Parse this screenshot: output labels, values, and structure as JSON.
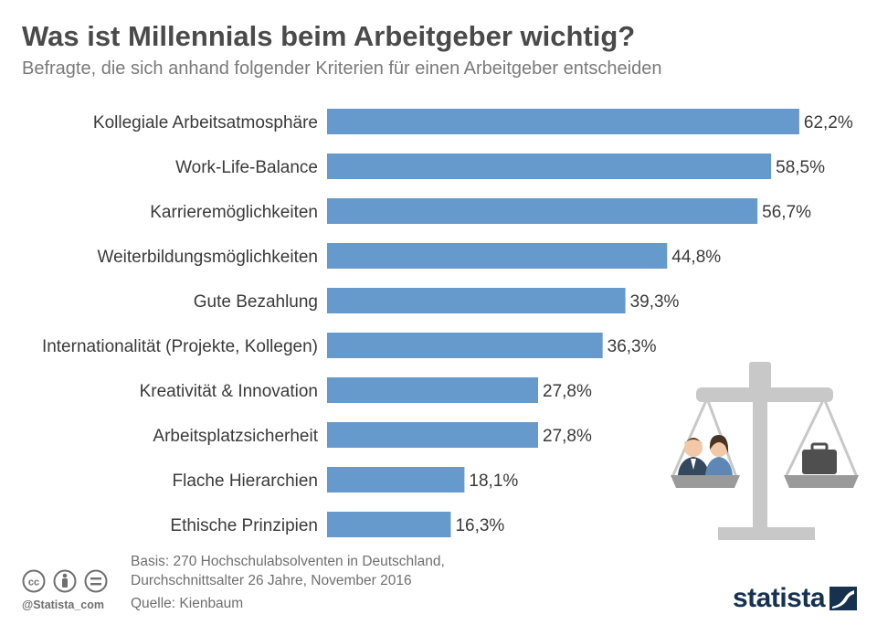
{
  "header": {
    "title": "Was ist Millennials beim Arbeitgeber wichtig?",
    "subtitle": "Befragte, die sich anhand folgender Kriterien für einen Arbeitgeber entscheiden"
  },
  "chart_data": {
    "type": "bar",
    "orientation": "horizontal",
    "categories": [
      "Kollegiale Arbeitsatmosphäre",
      "Work-Life-Balance",
      "Karrieremöglichkeiten",
      "Weiterbildungsmöglichkeiten",
      "Gute Bezahlung",
      "Internationalität (Projekte, Kollegen)",
      "Kreativität & Innovation",
      "Arbeitsplatzsicherheit",
      "Flache Hierarchien",
      "Ethische Prinzipien"
    ],
    "values": [
      62.2,
      58.5,
      56.7,
      44.8,
      39.3,
      36.3,
      27.8,
      27.8,
      18.1,
      16.3
    ],
    "value_labels": [
      "62,2%",
      "58,5%",
      "56,7%",
      "44,8%",
      "39,3%",
      "36,3%",
      "27,8%",
      "27,8%",
      "18,1%",
      "16,3%"
    ],
    "unit": "%",
    "bar_color": "#6699cc",
    "grid": false,
    "legend": "none"
  },
  "footer": {
    "basis_line1": "Basis: 270 Hochschulabsolventen in Deutschland,",
    "basis_line2": "Durchschnittsalter 26 Jahre, November 2016",
    "source": "Quelle: Kienbaum",
    "handle": "@Statista_com",
    "brand": "statista",
    "license_icons": [
      "cc-icon",
      "by-icon",
      "nd-icon"
    ]
  },
  "colors": {
    "bar": "#6699cc",
    "title": "#4a4a4a",
    "brand": "#16324f",
    "scale": "#c8c8c8"
  }
}
